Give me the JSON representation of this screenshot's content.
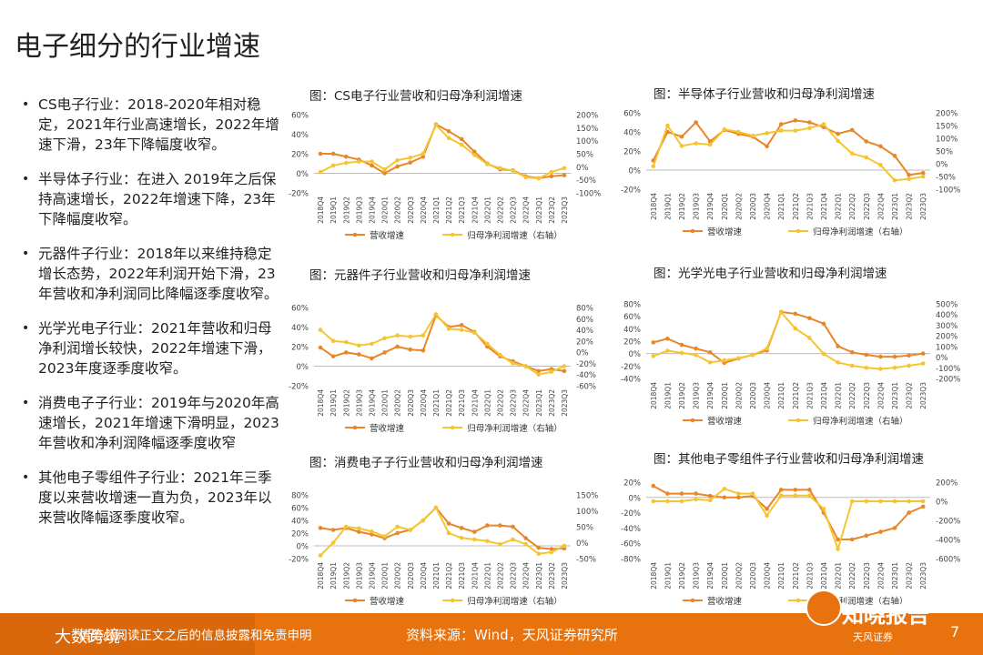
{
  "page": {
    "title": "电子细分的行业增速",
    "page_number": "7"
  },
  "bullets": [
    "CS电子行业：2018-2020年相对稳定，2021年行业高速增长，2022年增速下滑，23年下降幅度收窄。",
    "半导体子行业：在进入 2019年之后保持高速增长，2022年增速下降，23年下降幅度收窄。",
    "元器件子行业：2018年以来维持稳定增长态势，2022年利润开始下滑，23年营收和净利润同比降幅逐季度收窄。",
    "光学光电子行业：2021年营收和归母净利润增长较快，2022年增速下滑，2023年度逐季度收窄。",
    "消费电子子行业：2019年与2020年高速增长，2021年增速下滑明显，2023年营收和净利润降幅逐季度收窄",
    "其他电子零组件子行业：2021年三季度以来营收增速一直为负，2023年以来营收降幅逐季度收窄。"
  ],
  "colors": {
    "revenue": "#e8862a",
    "profit": "#f5c531",
    "footer": "#e8720e"
  },
  "footer": {
    "logo": "大数跨境",
    "disclaimer": "请务必阅读正文之后的信息披露和免责申明",
    "source": "资料来源：Wind，天风证券研究所",
    "watermark": "知晓报告",
    "brand": "天风证券"
  },
  "chart_data": [
    {
      "type": "line",
      "title": "图：CS电子行业营收和归母净利润增速",
      "x": [
        "2018Q4",
        "2019Q1",
        "2019Q2",
        "2019Q3",
        "2019Q4",
        "2020Q1",
        "2020Q2",
        "2020Q3",
        "2020Q4",
        "2021Q1",
        "2021Q2",
        "2021Q3",
        "2021Q4",
        "2022Q1",
        "2022Q2",
        "2022Q3",
        "2022Q4",
        "2023Q1",
        "2023Q2",
        "2023Q3"
      ],
      "x_ticks": [
        "2018Q4",
        "2019Q1",
        "2019Q2",
        "2019Q3",
        "2019Q4",
        "2020Q1",
        "2020Q2",
        "2020Q3",
        "2020Q4",
        "2021Q1",
        "2021Q2",
        "2021Q3",
        "2021Q4",
        "2022Q1",
        "2022Q2",
        "2022Q3",
        "2022Q4",
        "2023Q1",
        "2023Q2",
        "2023Q3"
      ],
      "ylim_left": [
        -20,
        60
      ],
      "yticks_left": [
        "60%",
        "40%",
        "20%",
        "0%",
        "-20%"
      ],
      "ylim_right": [
        -100,
        200
      ],
      "yticks_right": [
        "200%",
        "150%",
        "100%",
        "50%",
        "0%",
        "-50%",
        "-100%"
      ],
      "series": [
        {
          "name": "营收增速",
          "axis": "left",
          "values": [
            20,
            20,
            17,
            14,
            8,
            0,
            7,
            11,
            17,
            50,
            43,
            35,
            22,
            10,
            4,
            3,
            -3,
            -5,
            -3,
            -2
          ]
        },
        {
          "name": "归母净利润增速（右轴）",
          "axis": "right",
          "values": [
            -20,
            5,
            15,
            20,
            20,
            -10,
            25,
            35,
            50,
            160,
            110,
            85,
            45,
            10,
            -5,
            -15,
            -40,
            -45,
            -20,
            -5
          ]
        }
      ]
    },
    {
      "type": "line",
      "title": "图：半导体子行业营收和归母净利润增速",
      "x": [
        "2018Q4",
        "2019Q1",
        "2019Q2",
        "2019Q3",
        "2019Q4",
        "2020Q1",
        "2020Q2",
        "2020Q3",
        "2020Q4",
        "2021Q1",
        "2021Q2",
        "2021Q3",
        "2021Q4",
        "2022Q1",
        "2022Q2",
        "2022Q3",
        "2022Q4",
        "2023Q1",
        "2023Q2",
        "2023Q3"
      ],
      "x_ticks": [
        "2018Q4",
        "2019Q1",
        "2019Q2",
        "2019Q3",
        "2019Q4",
        "2020Q1",
        "2020Q2",
        "2020Q3",
        "2020Q4",
        "2021Q1",
        "2021Q2",
        "2021Q3",
        "2021Q4",
        "2022Q1",
        "2022Q2",
        "2022Q3",
        "2022Q4",
        "2023Q1",
        "2023Q2",
        "2023Q3"
      ],
      "ylim_left": [
        -20,
        60
      ],
      "yticks_left": [
        "60%",
        "40%",
        "20%",
        "0%",
        "-20%"
      ],
      "ylim_right": [
        -100,
        200
      ],
      "yticks_right": [
        "200%",
        "150%",
        "100%",
        "50%",
        "0%",
        "-50%",
        "-100%"
      ],
      "series": [
        {
          "name": "营收增速",
          "axis": "left",
          "values": [
            10,
            40,
            35,
            50,
            30,
            42,
            38,
            35,
            25,
            48,
            52,
            50,
            45,
            38,
            42,
            30,
            25,
            15,
            -5,
            -3
          ]
        },
        {
          "name": "归母净利润增速（右轴）",
          "axis": "right",
          "values": [
            -10,
            150,
            70,
            80,
            75,
            135,
            125,
            110,
            120,
            130,
            130,
            140,
            155,
            90,
            40,
            25,
            -5,
            -65,
            -60,
            -50
          ]
        }
      ]
    },
    {
      "type": "line",
      "title": "图：元器件子行业营收和归母净利润增速",
      "x": [
        "2018Q4",
        "2019Q1",
        "2019Q2",
        "2019Q3",
        "2019Q4",
        "2020Q1",
        "2020Q2",
        "2020Q3",
        "2020Q4",
        "2021Q1",
        "2021Q2",
        "2021Q3",
        "2021Q4",
        "2022Q1",
        "2022Q2",
        "2022Q3",
        "2022Q4",
        "2023Q1",
        "2023Q2",
        "2023Q3"
      ],
      "x_ticks": [
        "2018Q4",
        "2019Q1",
        "2019Q2",
        "2019Q3",
        "2019Q4",
        "2020Q1",
        "2020Q2",
        "2020Q3",
        "2020Q4",
        "2021Q1",
        "2021Q2",
        "2021Q3",
        "2021Q4",
        "2022Q1",
        "2022Q2",
        "2022Q3",
        "2022Q4",
        "2023Q1",
        "2023Q2",
        "2023Q3"
      ],
      "ylim_left": [
        -20,
        60
      ],
      "yticks_left": [
        "60%",
        "40%",
        "20%",
        "0%",
        "-20%"
      ],
      "ylim_right": [
        -60,
        80
      ],
      "yticks_right": [
        "80%",
        "60%",
        "40%",
        "20%",
        "0%",
        "-20%",
        "-40%",
        "-60%"
      ],
      "series": [
        {
          "name": "营收增速",
          "axis": "left",
          "values": [
            19,
            10,
            14,
            12,
            8,
            14,
            20,
            17,
            16,
            52,
            40,
            42,
            35,
            20,
            10,
            5,
            0,
            -5,
            -3,
            -5
          ]
        },
        {
          "name": "归母净利润增速（右轴）",
          "axis": "right",
          "values": [
            40,
            20,
            18,
            12,
            15,
            25,
            30,
            28,
            30,
            68,
            42,
            40,
            35,
            15,
            -5,
            -20,
            -25,
            -40,
            -35,
            -25
          ]
        }
      ]
    },
    {
      "type": "line",
      "title": "图：光学光电子行业营收和归母净利润增速",
      "x": [
        "2018Q4",
        "2019Q1",
        "2019Q2",
        "2019Q3",
        "2019Q4",
        "2020Q1",
        "2020Q2",
        "2020Q3",
        "2020Q4",
        "2021Q1",
        "2021Q2",
        "2021Q3",
        "2021Q4",
        "2022Q1",
        "2022Q2",
        "2022Q3",
        "2022Q4",
        "2023Q1",
        "2023Q2",
        "2023Q3"
      ],
      "x_ticks": [
        "2018Q4",
        "2019Q1",
        "2019Q2",
        "2019Q3",
        "2019Q4",
        "2020Q1",
        "2020Q2",
        "2020Q3",
        "2020Q4",
        "2021Q1",
        "2021Q2",
        "2021Q3",
        "2021Q4",
        "2022Q1",
        "2022Q2",
        "2022Q3",
        "2022Q4",
        "2023Q1",
        "2023Q2",
        "2023Q3"
      ],
      "ylim_left": [
        -40,
        80
      ],
      "yticks_left": [
        "80%",
        "60%",
        "40%",
        "20%",
        "0%",
        "-20%",
        "-40%"
      ],
      "ylim_right": [
        -200,
        500
      ],
      "yticks_right": [
        "500%",
        "400%",
        "300%",
        "200%",
        "100%",
        "0%",
        "-100%",
        "-200%"
      ],
      "series": [
        {
          "name": "营收增速",
          "axis": "left",
          "values": [
            18,
            24,
            14,
            8,
            2,
            -15,
            -8,
            -2,
            5,
            67,
            64,
            57,
            48,
            12,
            2,
            -2,
            -5,
            -5,
            -3,
            0
          ]
        },
        {
          "name": "归母净利润增速（右轴）",
          "axis": "right",
          "values": [
            10,
            60,
            40,
            20,
            -50,
            -30,
            -10,
            20,
            80,
            420,
            270,
            180,
            30,
            -50,
            -80,
            -100,
            -110,
            -100,
            -80,
            -60
          ]
        }
      ]
    },
    {
      "type": "line",
      "title": "图：消费电子子行业营收和归母净利润增速",
      "x": [
        "2018Q4",
        "2019Q1",
        "2019Q2",
        "2019Q3",
        "2019Q4",
        "2020Q1",
        "2020Q2",
        "2020Q3",
        "2020Q4",
        "2021Q1",
        "2021Q2",
        "2021Q3",
        "2021Q4",
        "2022Q1",
        "2022Q2",
        "2022Q3",
        "2022Q4",
        "2023Q1",
        "2023Q2",
        "2023Q3"
      ],
      "x_ticks": [
        "2018Q4",
        "2019Q1",
        "2019Q2",
        "2019Q3",
        "2019Q4",
        "2020Q1",
        "2020Q2",
        "2020Q3",
        "2020Q4",
        "2021Q1",
        "2021Q2",
        "2021Q3",
        "2021Q4",
        "2022Q1",
        "2022Q2",
        "2022Q3",
        "2022Q4",
        "2023Q1",
        "2023Q2",
        "2023Q3"
      ],
      "ylim_left": [
        -20,
        80
      ],
      "yticks_left": [
        "80%",
        "60%",
        "40%",
        "20%",
        "0%",
        "-20%"
      ],
      "ylim_right": [
        -50,
        150
      ],
      "yticks_right": [
        "150%",
        "100%",
        "50%",
        "0%",
        "-50%"
      ],
      "series": [
        {
          "name": "营收增速",
          "axis": "left",
          "values": [
            28,
            25,
            28,
            22,
            18,
            12,
            20,
            25,
            40,
            60,
            35,
            28,
            22,
            32,
            32,
            30,
            12,
            -3,
            -5,
            -4
          ]
        },
        {
          "name": "归母净利润增速（右轴）",
          "axis": "right",
          "values": [
            -40,
            0,
            50,
            45,
            35,
            20,
            50,
            40,
            70,
            110,
            30,
            15,
            10,
            5,
            -5,
            10,
            -5,
            -35,
            -30,
            -10
          ]
        }
      ]
    },
    {
      "type": "line",
      "title": "图：其他电子零组件子行业营收和归母净利润增速",
      "x": [
        "2018Q4",
        "2019Q1",
        "2019Q2",
        "2019Q3",
        "2019Q4",
        "2020Q1",
        "2020Q2",
        "2020Q3",
        "2020Q4",
        "2021Q1",
        "2021Q2",
        "2021Q3",
        "2021Q4",
        "2022Q1",
        "2022Q2",
        "2022Q3",
        "2022Q4",
        "2023Q1",
        "2023Q2",
        "2023Q3"
      ],
      "x_ticks": [
        "2018Q4",
        "2019Q1",
        "2019Q2",
        "2019Q3",
        "2019Q4",
        "2020Q1",
        "2020Q2",
        "2020Q3",
        "2020Q4",
        "2021Q1",
        "2021Q2",
        "2021Q3",
        "2021Q4",
        "2022Q1",
        "2022Q2",
        "2022Q3",
        "2022Q4",
        "2023Q1",
        "2023Q2",
        "2023Q3"
      ],
      "ylim_left": [
        -80,
        20
      ],
      "yticks_left": [
        "20%",
        "0%",
        "-20%",
        "-40%",
        "-60%",
        "-80%"
      ],
      "ylim_right": [
        -600,
        200
      ],
      "yticks_right": [
        "200%",
        "0%",
        "-200%",
        "-400%",
        "-600%"
      ],
      "series": [
        {
          "name": "营收增速",
          "axis": "left",
          "values": [
            15,
            5,
            5,
            5,
            2,
            0,
            0,
            2,
            -15,
            10,
            10,
            10,
            -20,
            -55,
            -55,
            -50,
            -45,
            -40,
            -20,
            -12
          ]
        },
        {
          "name": "归母净利润增速（右轴）",
          "axis": "right",
          "values": [
            0,
            0,
            0,
            20,
            10,
            130,
            80,
            80,
            -150,
            60,
            60,
            60,
            -80,
            -500,
            0,
            0,
            0,
            0,
            0,
            0
          ]
        }
      ]
    }
  ]
}
